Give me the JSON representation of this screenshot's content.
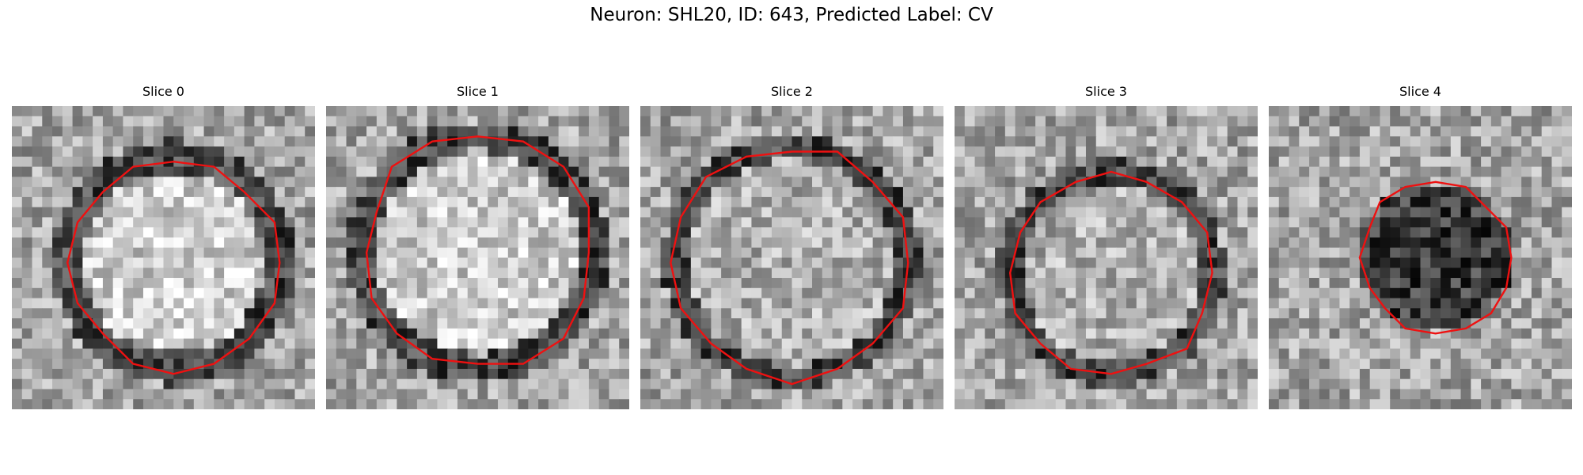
{
  "figure": {
    "title": "Neuron: SHL20, ID: 643, Predicted Label: CV"
  },
  "colors": {
    "contour": "#ee1111",
    "background": "#ffffff"
  },
  "panels": [
    {
      "label": "Slice 0",
      "center_tone": "bright",
      "ring_tone": "dark"
    },
    {
      "label": "Slice 1",
      "center_tone": "bright",
      "ring_tone": "dark"
    },
    {
      "label": "Slice 2",
      "center_tone": "mid",
      "ring_tone": "dark"
    },
    {
      "label": "Slice 3",
      "center_tone": "mid",
      "ring_tone": "dark"
    },
    {
      "label": "Slice 4",
      "center_tone": "dark",
      "ring_tone": "none"
    }
  ]
}
